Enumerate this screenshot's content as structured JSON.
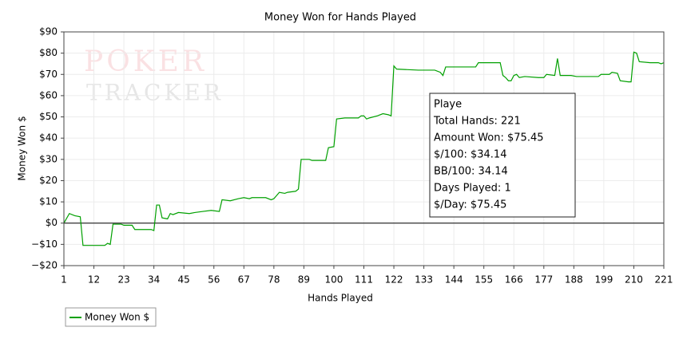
{
  "chart_data": {
    "type": "line",
    "title": "Money Won for Hands Played",
    "x_label": "Hands Played",
    "y_label": "Money Won $",
    "watermark": [
      "POKER",
      "TRACKER"
    ],
    "tooltip": [
      "Playe",
      "Total Hands: 221",
      "Amount Won: $75.45",
      "$/100: $34.14",
      "BB/100: 34.14",
      "Days Played: 1",
      "$/Day: $75.45"
    ],
    "xlim": [
      1,
      221
    ],
    "xticks": [
      1,
      12,
      23,
      34,
      45,
      56,
      67,
      78,
      89,
      100,
      111,
      122,
      133,
      144,
      155,
      166,
      177,
      188,
      199,
      210,
      221
    ],
    "ylim": [
      -20,
      90
    ],
    "yticks": [
      {
        "value": -20,
        "label": "−$20"
      },
      {
        "value": -10,
        "label": "−$10"
      },
      {
        "value": 0,
        "label": "$0"
      },
      {
        "value": 10,
        "label": "$10"
      },
      {
        "value": 20,
        "label": "$20"
      },
      {
        "value": 30,
        "label": "$30"
      },
      {
        "value": 40,
        "label": "$40"
      },
      {
        "value": 50,
        "label": "$50"
      },
      {
        "value": 60,
        "label": "$60"
      },
      {
        "value": 70,
        "label": "$70"
      },
      {
        "value": 80,
        "label": "$80"
      },
      {
        "value": 90,
        "label": "$90"
      }
    ],
    "grid": true,
    "legend": "bottom-left",
    "series": [
      {
        "name": "Money Won $",
        "color": "#00a000",
        "x": [
          1,
          3,
          5,
          7,
          8,
          16,
          17,
          18,
          19,
          22,
          23,
          26,
          27,
          33,
          34,
          35,
          36,
          37,
          39,
          40,
          41,
          43,
          47,
          49,
          52,
          55,
          58,
          59,
          62,
          65,
          67,
          69,
          70,
          75,
          77,
          78,
          80,
          82,
          83,
          86,
          87,
          88,
          91,
          92,
          97,
          98,
          100,
          101,
          104,
          109,
          110,
          111,
          112,
          113,
          116,
          118,
          120,
          121,
          122,
          123,
          131,
          137,
          139,
          140,
          141,
          152,
          153,
          161,
          162,
          163,
          164,
          165,
          166,
          167,
          168,
          170,
          175,
          177,
          178,
          181,
          182,
          183,
          187,
          189,
          197,
          198,
          201,
          202,
          204,
          205,
          208,
          209,
          210,
          211,
          212,
          216,
          219,
          220,
          221
        ],
        "values": [
          0,
          4.5,
          3.5,
          3,
          -10.5,
          -10.5,
          -9.5,
          -10,
          -0.5,
          -0.5,
          -1,
          -1,
          -3,
          -3,
          -3.5,
          8.5,
          8.5,
          2.5,
          2,
          4.5,
          4,
          5,
          4.5,
          5,
          5.5,
          6,
          5.5,
          11,
          10.5,
          11.5,
          12,
          11.5,
          12,
          12,
          11,
          11.5,
          14.5,
          14,
          14.5,
          15,
          16,
          30,
          30,
          29.5,
          29.5,
          35.5,
          36,
          49,
          49.5,
          49.5,
          50.5,
          50.5,
          49,
          49.5,
          50.5,
          51.5,
          51,
          50.5,
          74,
          72.5,
          72,
          72,
          71,
          69.5,
          73.5,
          73.5,
          75.5,
          75.5,
          69.5,
          68.5,
          67,
          67,
          69.5,
          70,
          68.5,
          69,
          68.5,
          68.5,
          70,
          69.5,
          77.5,
          69.5,
          69.5,
          69,
          69,
          70,
          70,
          71,
          70.5,
          67,
          66.5,
          66.5,
          80.5,
          80,
          76,
          75.5,
          75.5,
          75,
          75.5
        ]
      }
    ]
  }
}
